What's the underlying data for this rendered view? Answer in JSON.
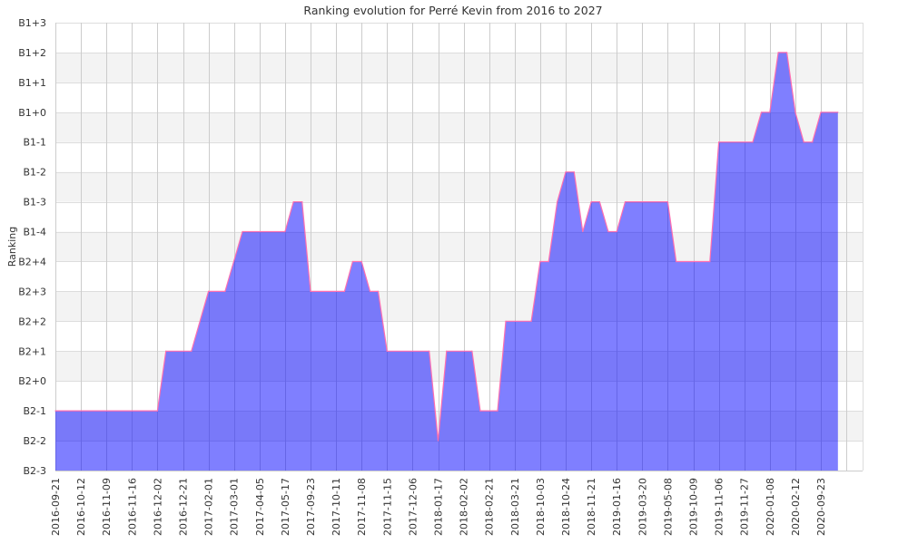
{
  "chart_data": {
    "type": "area",
    "title": "Ranking evolution for Perré Kevin from 2016 to 2027",
    "xlabel": "",
    "ylabel": "Ranking",
    "grid": true,
    "legend": "none",
    "categories": [
      "2016-09-21",
      "2016-10-12",
      "2016-11-09",
      "2016-11-16",
      "2016-12-02",
      "2016-12-21",
      "2017-02-01",
      "2017-03-01",
      "2017-04-05",
      "2017-05-17",
      "2017-09-23",
      "2017-10-11",
      "2017-11-08",
      "2017-11-15",
      "2017-12-06",
      "2018-01-17",
      "2018-02-02",
      "2018-02-21",
      "2018-03-21",
      "2018-10-03",
      "2018-10-24",
      "2018-11-21",
      "2019-01-16",
      "2019-03-20",
      "2019-05-08",
      "2019-10-09",
      "2019-11-06",
      "2019-11-27",
      "2020-01-08",
      "2020-02-12",
      "2020-09-23"
    ],
    "y_levels": [
      "B2-3",
      "B2-2",
      "B2-1",
      "B2+0",
      "B2+1",
      "B2+2",
      "B2+3",
      "B2+4",
      "B1-4",
      "B1-3",
      "B1-2",
      "B1-1",
      "B1+0",
      "B1+1",
      "B1+2",
      "B1+3"
    ],
    "x_range": [
      0,
      31
    ],
    "series": [
      {
        "name": "Ranking",
        "fill_color": "#8080ff",
        "line_color": "#ff6fb0",
        "points": [
          [
            0,
            2
          ],
          [
            4,
            2
          ],
          [
            4.33,
            4
          ],
          [
            5.33,
            4
          ],
          [
            6,
            6
          ],
          [
            6.65,
            6
          ],
          [
            7.33,
            8
          ],
          [
            9,
            8
          ],
          [
            9.33,
            9
          ],
          [
            9.67,
            9
          ],
          [
            10,
            6
          ],
          [
            11.33,
            6
          ],
          [
            11.65,
            7
          ],
          [
            12,
            7
          ],
          [
            12.33,
            6
          ],
          [
            12.65,
            6
          ],
          [
            13,
            4
          ],
          [
            14.65,
            4
          ],
          [
            15,
            1
          ],
          [
            15.33,
            4
          ],
          [
            16.33,
            4
          ],
          [
            16.65,
            2
          ],
          [
            17.33,
            2
          ],
          [
            17.65,
            5
          ],
          [
            18.65,
            5
          ],
          [
            19,
            7
          ],
          [
            19.33,
            7
          ],
          [
            19.67,
            9
          ],
          [
            20,
            10
          ],
          [
            20.33,
            10
          ],
          [
            20.67,
            8
          ],
          [
            21,
            9
          ],
          [
            21.33,
            9
          ],
          [
            21.67,
            8
          ],
          [
            22,
            8
          ],
          [
            22.33,
            9
          ],
          [
            24,
            9
          ],
          [
            24.33,
            7
          ],
          [
            25.65,
            7
          ],
          [
            26,
            11
          ],
          [
            27.33,
            11
          ],
          [
            27.67,
            12
          ],
          [
            28,
            12
          ],
          [
            28.33,
            14
          ],
          [
            28.67,
            14
          ],
          [
            29,
            12
          ],
          [
            29.33,
            11
          ],
          [
            29.67,
            11
          ],
          [
            30,
            12
          ],
          [
            30.67,
            12
          ]
        ]
      }
    ]
  }
}
